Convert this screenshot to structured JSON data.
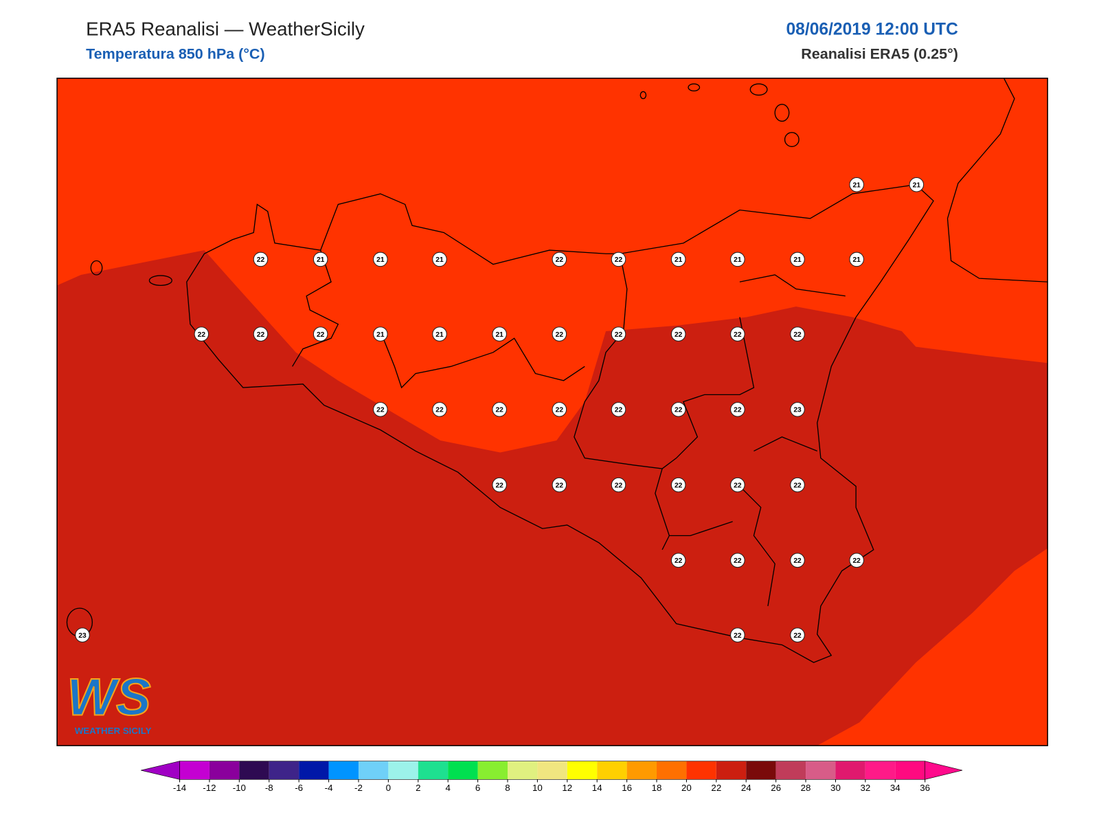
{
  "header": {
    "title": "ERA5 Reanalisi — WeatherSicily",
    "subtitle": "Temperatura 850 hPa (°C)",
    "datetime": "08/06/2019 12:00 UTC",
    "source": "Reanalisi ERA5 (0.25°)"
  },
  "points": [
    21,
    21,
    22,
    21,
    21,
    21,
    22,
    22,
    21,
    21,
    21,
    21,
    22,
    22,
    22,
    21,
    21,
    21,
    22,
    22,
    22,
    22,
    22,
    22,
    22,
    22,
    22,
    22,
    22,
    22,
    23,
    22,
    22,
    22,
    22,
    22,
    22,
    22,
    22,
    22,
    22,
    23,
    22,
    22
  ],
  "colorbar": {
    "ticks": [
      -14,
      -12,
      -10,
      -8,
      -6,
      -4,
      -2,
      0,
      2,
      4,
      6,
      8,
      10,
      12,
      14,
      16,
      18,
      20,
      22,
      24,
      26,
      28,
      30,
      32,
      34,
      36
    ],
    "under": "#a000c4",
    "over": "#ff0a8c",
    "colors": [
      "#c400d2",
      "#8a009c",
      "#2e0a52",
      "#3e2489",
      "#0018a8",
      "#0094ff",
      "#6fd0f8",
      "#9cf2ea",
      "#1ee090",
      "#00e050",
      "#88ee30",
      "#e0f080",
      "#f0e680",
      "#ffff00",
      "#ffd000",
      "#ff9a00",
      "#ff7000",
      "#ff3300",
      "#cc1f10",
      "#7a0a0a",
      "#c03c5a",
      "#d85c88",
      "#e0196e",
      "#ff1a88",
      "#ff0a80"
    ]
  },
  "map": {
    "fill_20_22": "#ff3300",
    "fill_22_24": "#cc1f10"
  },
  "logo": {
    "mark": "WS",
    "text": "WEATHER SICILY"
  }
}
